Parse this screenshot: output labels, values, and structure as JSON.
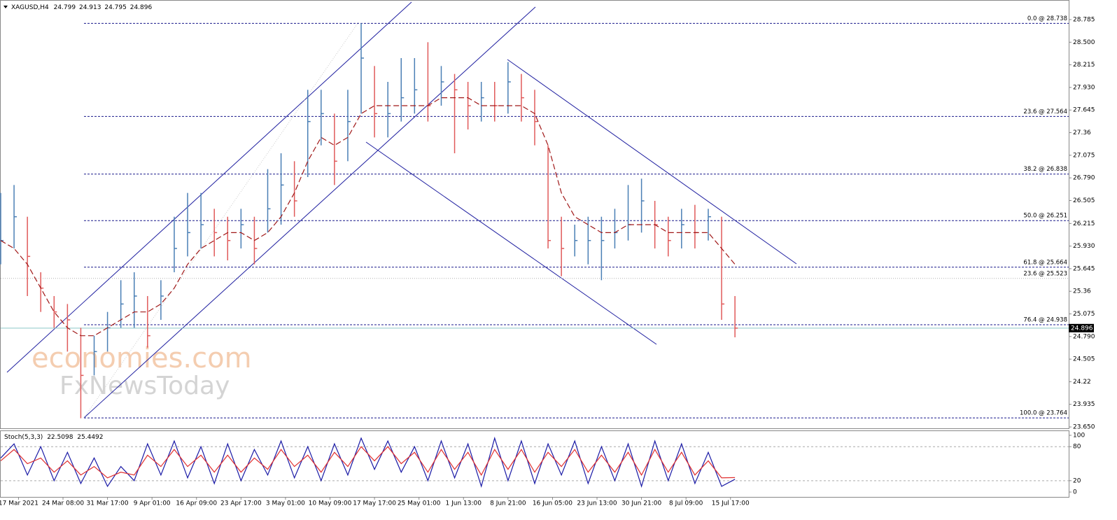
{
  "symbol": "XAGUSD,H4",
  "quote": [
    24.799,
    24.913,
    24.795,
    24.896
  ],
  "indicator": "Stoch(5,3,3)",
  "watermark": [
    "economies.com",
    "FxNewsToday"
  ],
  "chart_data": [
    {
      "type": "hlc",
      "x": [
        0,
        3,
        6,
        9,
        12,
        15,
        18,
        21,
        24,
        27,
        30,
        33,
        36,
        39,
        42,
        45,
        48,
        51,
        54,
        57,
        60,
        63,
        66,
        69,
        72,
        75,
        78,
        81,
        84,
        87,
        90,
        93,
        96,
        99,
        102,
        105,
        108,
        111,
        114,
        117,
        120,
        123,
        126,
        129,
        132,
        135,
        138,
        141,
        144,
        147,
        150,
        153,
        156,
        159,
        162,
        165
      ],
      "high": [
        26.6,
        26.7,
        26.3,
        25.6,
        25.3,
        25.2,
        24.9,
        24.8,
        25.1,
        25.5,
        25.6,
        25.3,
        25.5,
        26.3,
        26.6,
        26.6,
        26.4,
        26.3,
        26.4,
        26.3,
        26.9,
        27.1,
        27.0,
        27.9,
        27.9,
        27.6,
        27.9,
        28.74,
        28.2,
        28.0,
        28.3,
        28.3,
        28.5,
        28.2,
        28.1,
        28.0,
        28.0,
        28.0,
        28.25,
        28.1,
        27.9,
        27.2,
        26.3,
        26.2,
        26.3,
        26.3,
        26.4,
        26.7,
        26.78,
        26.5,
        26.3,
        26.4,
        26.45,
        26.4,
        26.3,
        25.3
      ],
      "low": [
        25.7,
        25.9,
        25.3,
        25.1,
        24.9,
        24.6,
        23.76,
        24.3,
        24.6,
        24.9,
        24.9,
        24.65,
        25.0,
        25.6,
        25.8,
        25.9,
        25.8,
        25.75,
        25.9,
        25.7,
        26.1,
        26.2,
        26.3,
        26.8,
        27.2,
        26.7,
        27.0,
        27.6,
        27.3,
        27.3,
        27.5,
        27.6,
        27.5,
        27.7,
        27.1,
        27.4,
        27.5,
        27.5,
        27.6,
        27.5,
        27.2,
        25.9,
        25.55,
        25.8,
        25.7,
        25.5,
        25.9,
        26.0,
        26.1,
        25.9,
        25.8,
        25.9,
        25.9,
        26.0,
        25.0,
        24.78
      ],
      "close": [
        26.0,
        26.3,
        25.8,
        25.4,
        25.1,
        25.0,
        24.3,
        24.6,
        24.9,
        25.2,
        25.3,
        24.8,
        25.3,
        25.9,
        26.1,
        26.2,
        26.1,
        26.0,
        26.2,
        25.9,
        26.4,
        26.7,
        26.5,
        27.5,
        27.6,
        27.0,
        27.5,
        28.3,
        27.6,
        27.6,
        27.8,
        27.9,
        27.7,
        28.0,
        27.9,
        27.7,
        27.8,
        27.7,
        28.0,
        27.8,
        27.5,
        26.0,
        25.9,
        26.0,
        26.0,
        26.0,
        26.1,
        26.2,
        26.5,
        26.2,
        26.0,
        26.2,
        26.1,
        26.3,
        25.2,
        24.896
      ],
      "ma": [
        26.0,
        25.9,
        25.7,
        25.4,
        25.1,
        24.9,
        24.8,
        24.8,
        24.9,
        25.0,
        25.1,
        25.1,
        25.2,
        25.4,
        25.7,
        25.9,
        26.0,
        26.1,
        26.1,
        26.0,
        26.1,
        26.3,
        26.6,
        27.0,
        27.3,
        27.2,
        27.3,
        27.6,
        27.7,
        27.7,
        27.7,
        27.7,
        27.7,
        27.8,
        27.8,
        27.8,
        27.7,
        27.7,
        27.7,
        27.7,
        27.6,
        27.2,
        26.6,
        26.3,
        26.2,
        26.1,
        26.1,
        26.2,
        26.2,
        26.2,
        26.1,
        26.1,
        26.1,
        26.1,
        25.9,
        25.7
      ],
      "up_color": "#4a7fb5",
      "down_color": "#e05a5a",
      "ma_color": "#a01818",
      "xlim": [
        0,
        240
      ],
      "ylim": [
        23.624,
        28.988
      ],
      "yticks": [
        28.785,
        {
          "value": 28.5,
          "label": "28.500"
        },
        28.215,
        {
          "value": 27.93,
          "label": "27.930"
        },
        27.645,
        27.36,
        27.075,
        {
          "value": 26.79,
          "label": "26.790"
        },
        26.505,
        26.215,
        {
          "value": 25.93,
          "label": "25.930"
        },
        25.645,
        25.36,
        25.075,
        {
          "value": 24.79,
          "label": "24.790"
        },
        24.505,
        24.22,
        23.935,
        {
          "value": 23.65,
          "label": "23.650"
        }
      ],
      "fib_levels": [
        {
          "value": 28.738,
          "label": "0.0 @ 28.738",
          "color": "#1a1a8c"
        },
        {
          "value": 27.564,
          "label": "23.6 @ 27.564",
          "color": "#1a1a8c"
        },
        {
          "value": 26.838,
          "label": "38.2 @ 26.838",
          "color": "#1a1a8c"
        },
        {
          "value": 26.251,
          "label": "50.0 @ 26.251",
          "color": "#1a1a8c"
        },
        {
          "value": 25.664,
          "label": "61.8 @ 25.664",
          "color": "#1a1a8c"
        },
        {
          "value": 25.523,
          "label": "23.6 @ 25.523",
          "color": "#b0b0b0"
        },
        {
          "value": 24.938,
          "label": "76.4 @ 24.938",
          "color": "#1a1a8c"
        },
        {
          "value": 23.764,
          "label": "100.0 @ 23.764",
          "color": "#1a1a8c"
        }
      ],
      "current_price": 24.896
    },
    {
      "type": "stochastic",
      "x": [
        0,
        3,
        6,
        9,
        12,
        15,
        18,
        21,
        24,
        27,
        30,
        33,
        36,
        39,
        42,
        45,
        48,
        51,
        54,
        57,
        60,
        63,
        66,
        69,
        72,
        75,
        78,
        81,
        84,
        87,
        90,
        93,
        96,
        99,
        102,
        105,
        108,
        111,
        114,
        117,
        120,
        123,
        126,
        129,
        132,
        135,
        138,
        141,
        144,
        147,
        150,
        153,
        156,
        159,
        162,
        165
      ],
      "series": [
        {
          "color": "#1a1aa6",
          "values": [
            60,
            85,
            30,
            80,
            20,
            70,
            15,
            60,
            10,
            45,
            20,
            85,
            30,
            90,
            25,
            80,
            15,
            85,
            20,
            75,
            30,
            90,
            25,
            80,
            20,
            85,
            30,
            95,
            40,
            90,
            35,
            80,
            20,
            90,
            25,
            85,
            10,
            95,
            20,
            90,
            15,
            85,
            30,
            90,
            15,
            80,
            20,
            85,
            10,
            90,
            20,
            85,
            15,
            70,
            10,
            22.5098
          ]
        },
        {
          "color": "#e03030",
          "values": [
            55,
            75,
            50,
            60,
            35,
            55,
            30,
            45,
            25,
            35,
            30,
            65,
            45,
            75,
            45,
            65,
            35,
            65,
            35,
            60,
            40,
            75,
            45,
            65,
            35,
            70,
            45,
            80,
            55,
            80,
            50,
            70,
            35,
            75,
            40,
            70,
            30,
            75,
            40,
            75,
            35,
            70,
            45,
            75,
            35,
            65,
            35,
            70,
            30,
            75,
            35,
            70,
            30,
            55,
            25,
            25.4492
          ]
        }
      ],
      "xlim": [
        0,
        240
      ],
      "ylim": [
        -8.6,
        107.4
      ],
      "yticks": [
        100,
        80,
        20,
        0
      ],
      "levels": [
        80,
        20
      ],
      "xticks": [
        {
          "value": 4,
          "label": "17 Mar 2021"
        },
        {
          "value": 14,
          "label": "24 Mar 08:00"
        },
        {
          "value": 24,
          "label": "31 Mar 17:00"
        },
        {
          "value": 34,
          "label": "9 Apr 01:00"
        },
        {
          "value": 44,
          "label": "16 Apr 09:00"
        },
        {
          "value": 54,
          "label": "23 Apr 17:00"
        },
        {
          "value": 64,
          "label": "3 May 01:00"
        },
        {
          "value": 74,
          "label": "10 May 09:00"
        },
        {
          "value": 84,
          "label": "17 May 17:00"
        },
        {
          "value": 94,
          "label": "25 May 01:00"
        },
        {
          "value": 104,
          "label": "1 Jun 13:00"
        },
        {
          "value": 114,
          "label": "8 Jun 21:00"
        },
        {
          "value": 124,
          "label": "16 Jun 05:00"
        },
        {
          "value": 134,
          "label": "23 Jun 13:00"
        },
        {
          "value": 144,
          "label": "30 Jun 21:00"
        },
        {
          "value": 154,
          "label": "8 Jul 09:00"
        },
        {
          "value": 164,
          "label": "15 Jul 17:00"
        }
      ]
    }
  ]
}
